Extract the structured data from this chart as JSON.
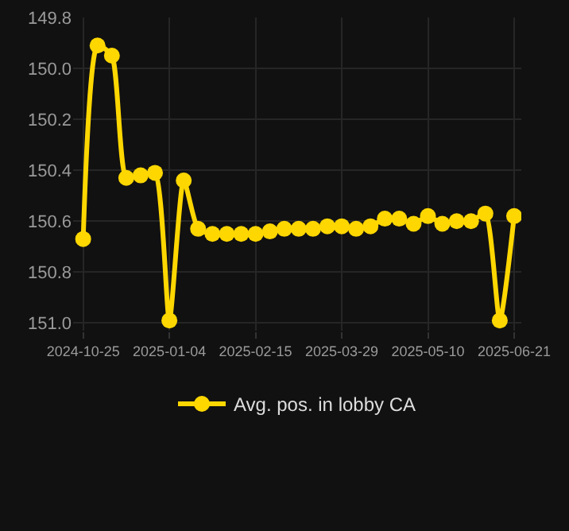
{
  "chart_data": {
    "type": "line",
    "categories": [
      "2024-10-25",
      null,
      null,
      null,
      null,
      null,
      "2025-01-04",
      null,
      null,
      null,
      null,
      null,
      "2025-02-15",
      null,
      null,
      null,
      null,
      null,
      "2025-03-29",
      null,
      null,
      null,
      null,
      null,
      "2025-05-10",
      null,
      null,
      null,
      null,
      null,
      "2025-06-21"
    ],
    "series": [
      {
        "name": "Avg. pos. in lobby CA",
        "color": "#ffd700",
        "values": [
          150.67,
          149.91,
          149.95,
          150.43,
          150.42,
          150.41,
          150.99,
          150.44,
          150.63,
          150.65,
          150.65,
          150.65,
          150.65,
          150.64,
          150.63,
          150.63,
          150.63,
          150.62,
          150.62,
          150.63,
          150.62,
          150.59,
          150.59,
          150.61,
          150.58,
          150.61,
          150.6,
          150.6,
          150.57,
          150.99,
          150.58
        ]
      }
    ],
    "ylim": [
      151.03,
      149.8
    ],
    "yticks": [
      149.8,
      {
        "value": 150.0,
        "label": "150.0"
      },
      150.2,
      150.4,
      150.6,
      150.8,
      {
        "value": 151.0,
        "label": "151.0"
      }
    ],
    "grid": true,
    "legend": "bottom",
    "marker": "circle",
    "line_style": "solid"
  }
}
